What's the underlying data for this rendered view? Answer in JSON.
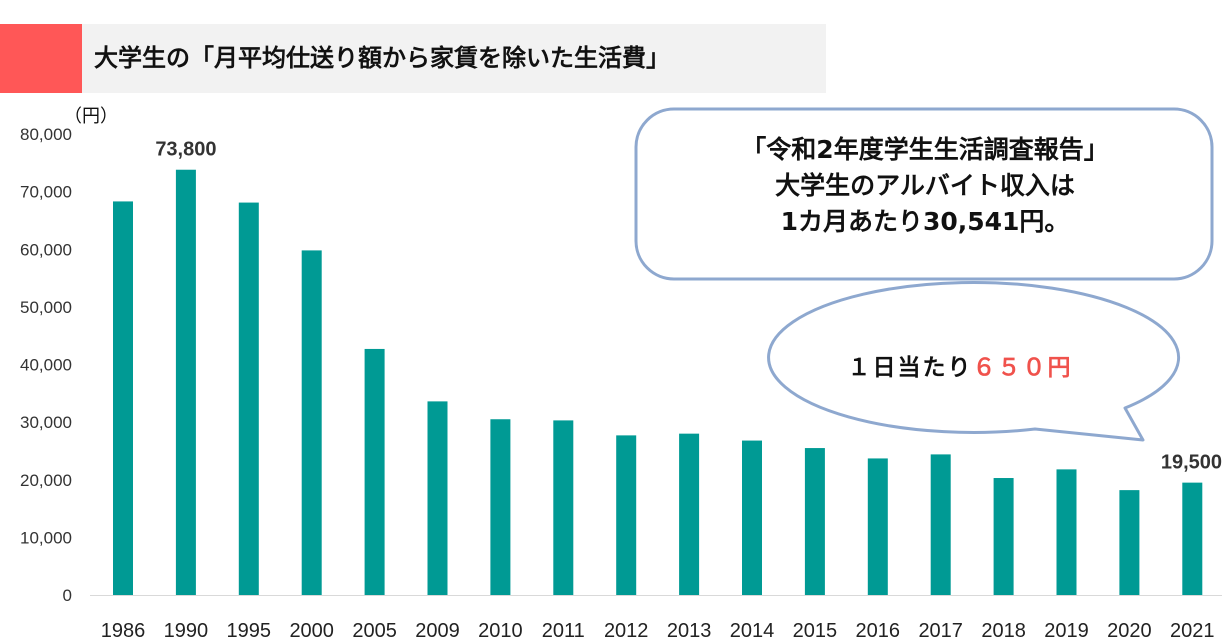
{
  "title": "大学生の「月平均仕送り額から家賃を除いた生活費」",
  "chart_data": {
    "type": "bar",
    "unit_label": "（円）",
    "categories": [
      "1986",
      "1990",
      "1995",
      "2000",
      "2005",
      "2009",
      "2010",
      "2011",
      "2012",
      "2013",
      "2014",
      "2015",
      "2016",
      "2017",
      "2018",
      "2019",
      "2020",
      "2021"
    ],
    "values": [
      68300,
      73800,
      68100,
      59800,
      42700,
      33600,
      30500,
      30300,
      27700,
      28000,
      26800,
      25500,
      23700,
      24400,
      20300,
      21800,
      18200,
      19500
    ],
    "ylim": [
      0,
      80000
    ],
    "yticks": [
      "0",
      "10,000",
      "20,000",
      "30,000",
      "40,000",
      "50,000",
      "60,000",
      "70,000",
      "80,000"
    ],
    "data_labels": [
      {
        "index": 1,
        "text": "73,800"
      },
      {
        "index": 17,
        "text": "19,500"
      }
    ],
    "bar_color": "#009a94",
    "grid": false
  },
  "callout_report": {
    "line1": "「令和2年度学生生活調査報告」",
    "line2": "大学生のアルバイト収入は",
    "line3": "1カ月あたり30,541円。"
  },
  "callout_daily": {
    "prefix": "１日当たり",
    "amount": "６５０円"
  },
  "colors": {
    "accent": "#ff5757",
    "bar": "#009a94",
    "highlight": "#f0524c",
    "callout_border": "#8ea8cf"
  }
}
